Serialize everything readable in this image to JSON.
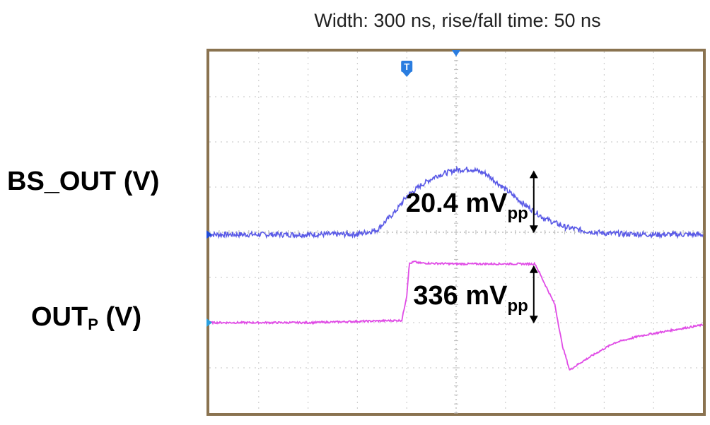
{
  "chart_data": {
    "type": "line",
    "title": "Width: 300 ns, rise/fall time: 50 ns",
    "grid": true,
    "divisions": {
      "x": 10,
      "y": 8
    },
    "trigger_marker": "T",
    "series": [
      {
        "name": "BS_OUT (V)",
        "color": "#5a5ae6",
        "x": [
          0,
          1.0,
          2.0,
          3.0,
          3.4,
          3.8,
          4.0,
          4.3,
          4.6,
          5.0,
          5.3,
          5.6,
          6.0,
          6.4,
          6.8,
          7.2,
          7.6,
          8.0,
          8.5,
          9.0,
          10.0
        ],
        "y": [
          -0.05,
          -0.05,
          -0.05,
          -0.04,
          0.05,
          0.5,
          0.8,
          1.05,
          1.25,
          1.38,
          1.4,
          1.3,
          0.95,
          0.6,
          0.3,
          0.12,
          0.03,
          -0.02,
          -0.04,
          -0.05,
          -0.05
        ]
      },
      {
        "name": "OUT_P (V)",
        "color": "#e04ce6",
        "x": [
          0,
          2.0,
          3.9,
          4.0,
          4.05,
          4.15,
          4.25,
          5.0,
          6.0,
          6.6,
          7.0,
          7.15,
          7.3,
          7.5,
          7.8,
          8.2,
          8.7,
          9.2,
          10.0
        ],
        "y": [
          -2.0,
          -2.0,
          -1.95,
          -1.4,
          -0.7,
          -0.65,
          -0.68,
          -0.7,
          -0.7,
          -0.7,
          -1.6,
          -2.5,
          -3.05,
          -2.9,
          -2.7,
          -2.45,
          -2.3,
          -2.2,
          -2.05
        ]
      }
    ],
    "annotations": [
      {
        "value": "20.4",
        "unit": "mV",
        "unit_sub": "pp",
        "x": 6.0,
        "y_from": -0.05,
        "y_to": 1.4
      },
      {
        "value": "336",
        "unit": "mV",
        "unit_sub": "pp",
        "x": 6.0,
        "y_from": -2.05,
        "y_to": -0.7
      }
    ]
  }
}
